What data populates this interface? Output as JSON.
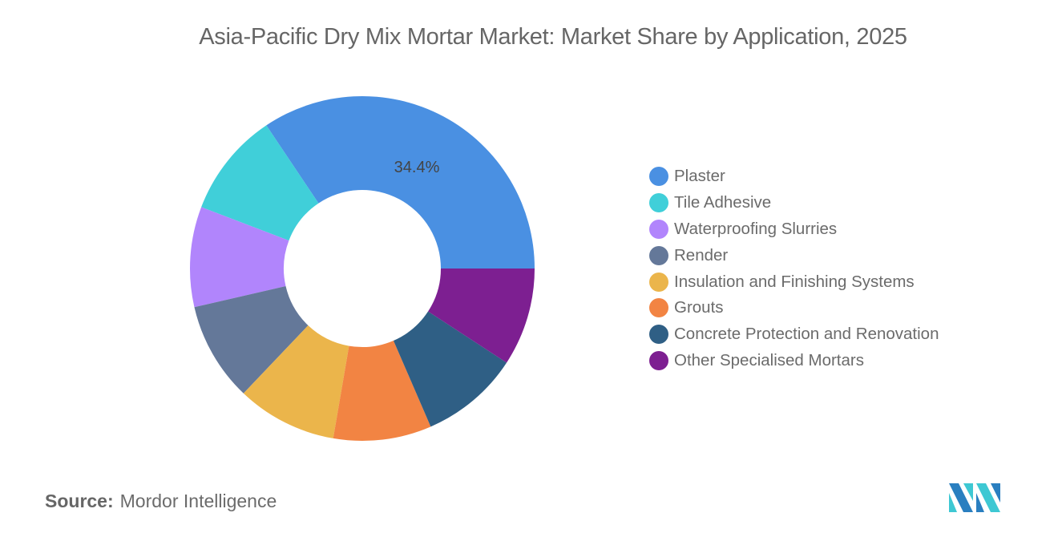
{
  "title": "Asia-Pacific Dry Mix Mortar Market: Market Share by Application, 2025",
  "source": {
    "label": "Source:",
    "value": "Mordor Intelligence"
  },
  "logo": {
    "icon": "mordor-intelligence-logo-icon"
  },
  "chart_data": {
    "type": "pie",
    "subtype": "donut",
    "title": "Asia-Pacific Dry Mix Mortar Market: Market Share by Application, 2025",
    "categories": [
      "Plaster",
      "Tile Adhesive",
      "Waterproofing Slurries",
      "Render",
      "Insulation and Finishing Systems",
      "Grouts",
      "Concrete Protection and Renovation",
      "Other Specialised Mortars"
    ],
    "values": [
      34.4,
      9.8,
      9.4,
      9.3,
      9.4,
      9.2,
      9.3,
      9.2
    ],
    "unit": "%",
    "colors": [
      "#4a90e2",
      "#40cfd9",
      "#b185fc",
      "#647899",
      "#ebb54b",
      "#f28443",
      "#2f5f85",
      "#7d1f91"
    ],
    "data_labels": [
      {
        "category": "Plaster",
        "text": "34.4%"
      }
    ],
    "legend_position": "right",
    "start_angle_deg": 0,
    "direction": "counterclockwise"
  },
  "legend": {
    "items": [
      {
        "label": "Plaster",
        "color": "#4a90e2"
      },
      {
        "label": "Tile Adhesive",
        "color": "#40cfd9"
      },
      {
        "label": "Waterproofing Slurries",
        "color": "#b185fc"
      },
      {
        "label": "Render",
        "color": "#647899"
      },
      {
        "label": "Insulation and Finishing Systems",
        "color": "#ebb54b"
      },
      {
        "label": "Grouts",
        "color": "#f28443"
      },
      {
        "label": "Concrete Protection and Renovation",
        "color": "#2f5f85"
      },
      {
        "label": "Other Specialised Mortars",
        "color": "#7d1f91"
      }
    ]
  }
}
